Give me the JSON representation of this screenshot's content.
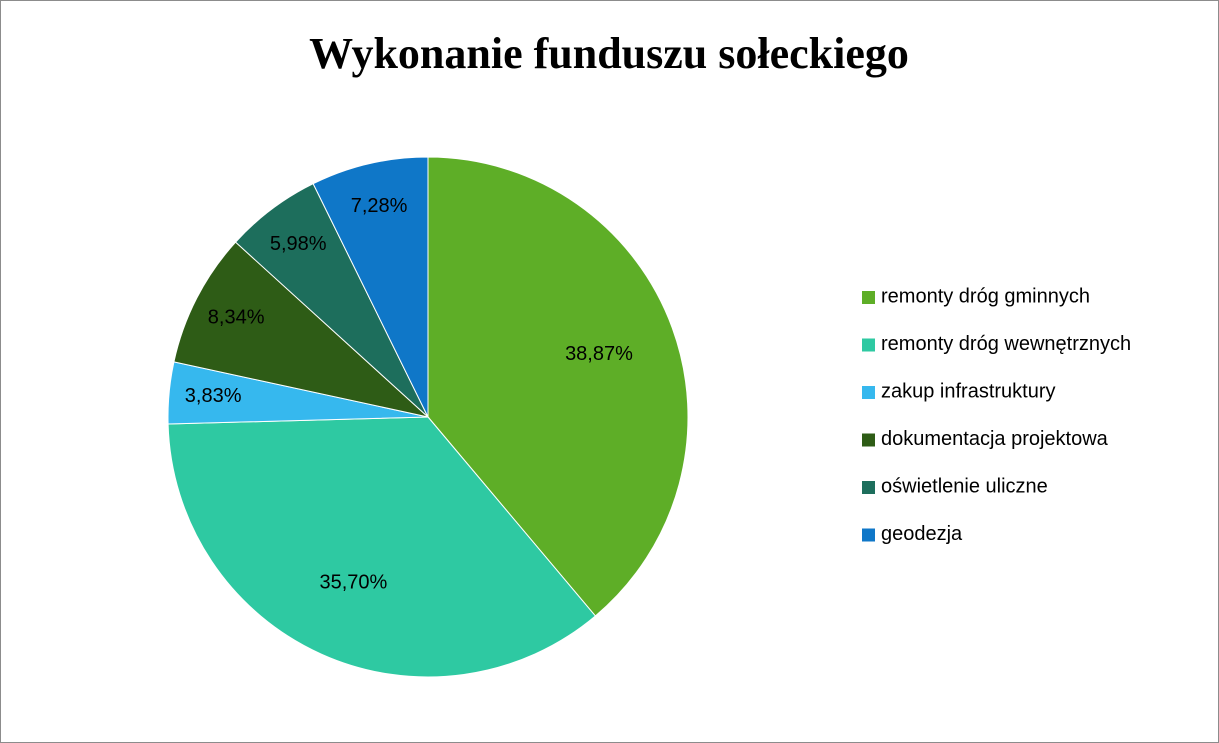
{
  "chart_data": {
    "type": "pie",
    "title": "Wykonanie funduszu sołeckiego",
    "categories": [
      "remonty dróg gminnych",
      "remonty dróg wewnętrznych",
      "zakup infrastruktury",
      "dokumentacja projektowa",
      "oświetlenie uliczne",
      "geodezja"
    ],
    "values": [
      38.87,
      35.7,
      3.83,
      8.34,
      5.98,
      7.28
    ],
    "value_labels": [
      "38,87%",
      "35,70%",
      "3,83%",
      "8,34%",
      "5,98%",
      "7,28%"
    ],
    "colors": [
      "#5eae27",
      "#2ec9a2",
      "#36b8ee",
      "#2e5c16",
      "#1d6e5c",
      "#0f77c8"
    ],
    "legend": "right"
  }
}
